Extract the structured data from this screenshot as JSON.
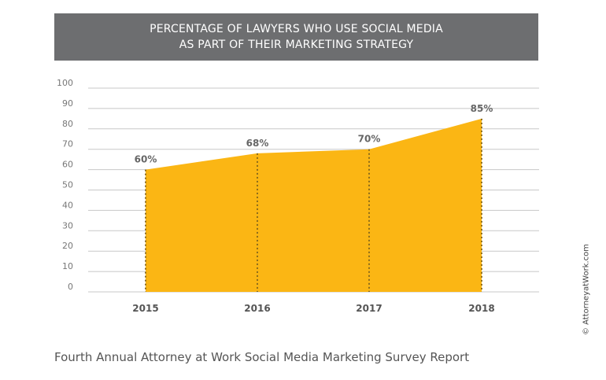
{
  "chart_data": {
    "type": "area",
    "title": [
      "PERCENTAGE OF LAWYERS WHO USE SOCIAL MEDIA",
      "AS PART OF THEIR MARKETING STRATEGY"
    ],
    "categories": [
      "2015",
      "2016",
      "2017",
      "2018"
    ],
    "values": [
      60,
      68,
      70,
      85
    ],
    "data_labels": [
      "60%",
      "68%",
      "70%",
      "85%"
    ],
    "yticks": [
      0,
      10,
      20,
      30,
      40,
      50,
      60,
      70,
      80,
      90,
      100
    ],
    "ylim": [
      0,
      100
    ],
    "xlabel": "",
    "ylabel": "",
    "grid": true,
    "fill_color": "#fbb614",
    "title_bg": "#6d6e70"
  },
  "footer": "Fourth Annual Attorney at Work Social Media Marketing Survey Report",
  "credit": "© AttorneyatWork.com"
}
